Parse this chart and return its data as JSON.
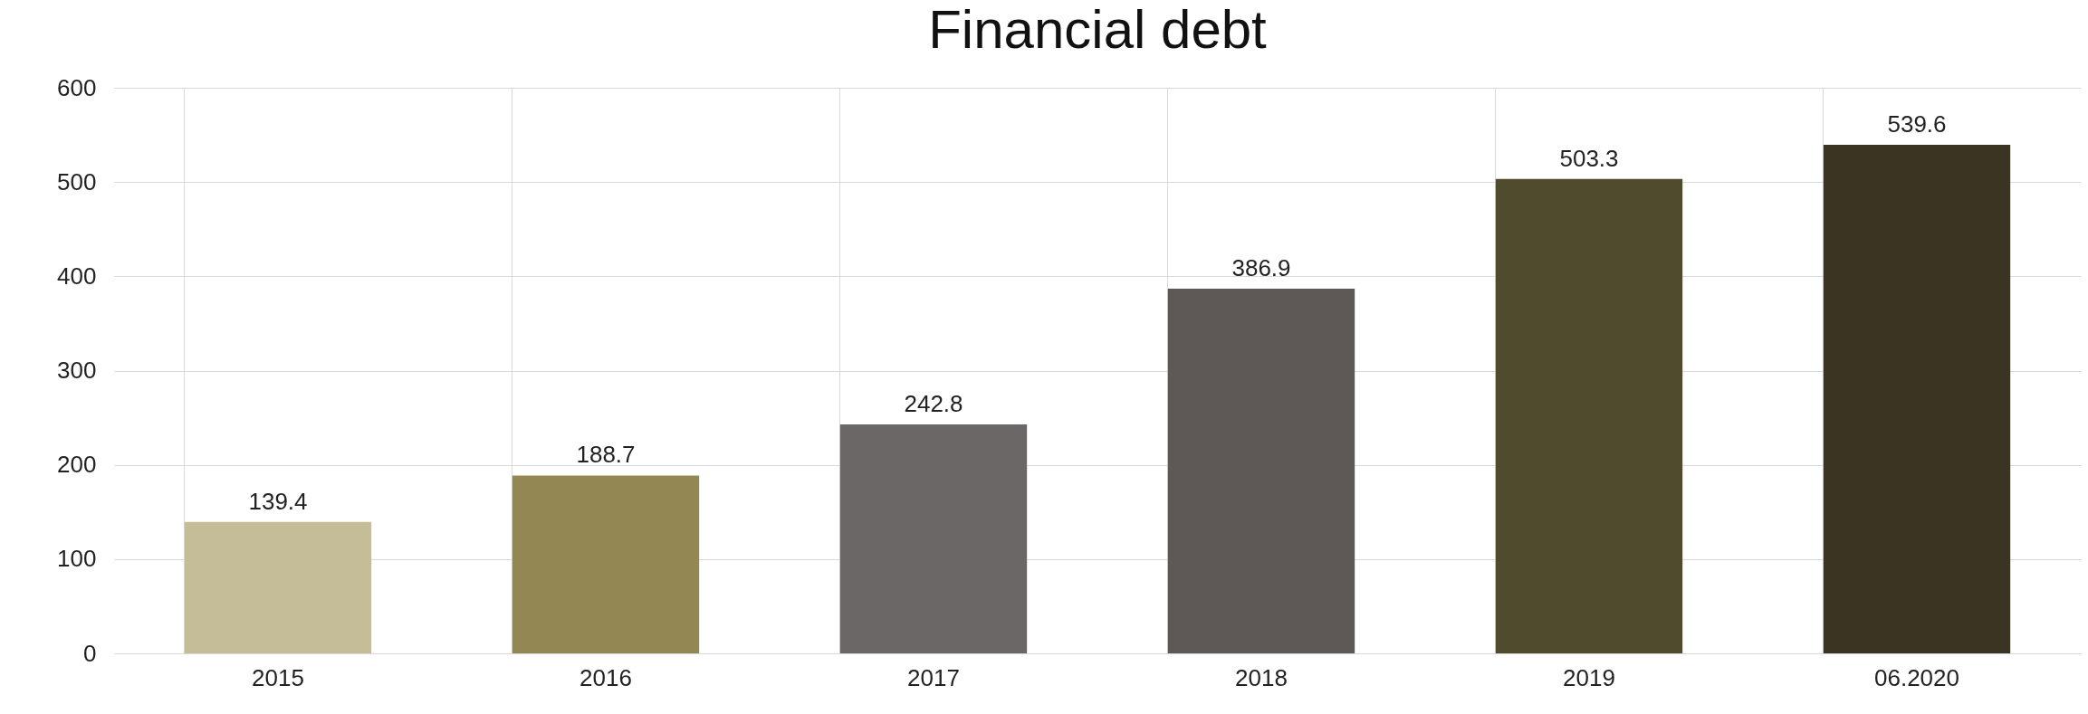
{
  "chart_data": {
    "type": "bar",
    "title": "Financial debt",
    "categories": [
      "2015",
      "2016",
      "2017",
      "2018",
      "2019",
      "06.2020"
    ],
    "values": [
      139.4,
      188.7,
      242.8,
      386.9,
      503.3,
      539.6
    ],
    "colors": [
      "#c5bd98",
      "#938853",
      "#6b6766",
      "#5e5957",
      "#514b2e",
      "#3a3422"
    ],
    "ylim": [
      0,
      600
    ],
    "yticks": [
      0,
      100,
      200,
      300,
      400,
      500,
      600
    ],
    "grid": true,
    "data_labels": true
  }
}
